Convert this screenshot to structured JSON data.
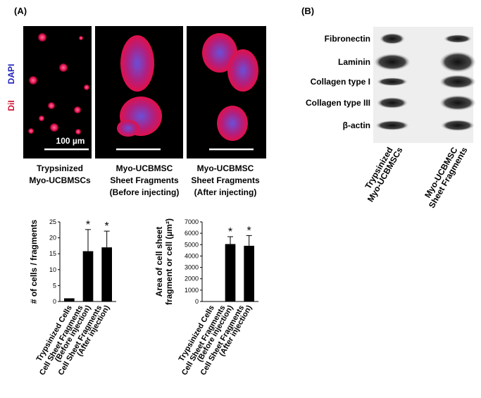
{
  "panel_labels": [
    "(A)",
    "(B)"
  ],
  "micrographs": {
    "stain_labels": [
      "DAPI",
      "DiI"
    ],
    "scale_bar": "100 µm",
    "captions": [
      [
        "Trypsinized",
        "Myo-UCBMSCs"
      ],
      [
        "Myo-UCBMSC",
        "Sheet Fragments",
        "(Before injecting)"
      ],
      [
        "Myo-UCBMSC",
        "Sheet Fragments",
        "(After injecting)"
      ]
    ]
  },
  "blot": {
    "rows": [
      "Fibronectin",
      "Laminin",
      "Collagen type I",
      "Collagen type III",
      "β-actin"
    ],
    "lanes": [
      [
        "Trypsinized",
        "Myo-UCBMSCs"
      ],
      [
        "Myo-UCBMSC",
        "Sheet Fragments"
      ]
    ]
  },
  "chart_data": [
    {
      "type": "bar",
      "y_label": [
        "# of cells / fragments"
      ],
      "categories": [
        [
          "Trypsinized  Cells"
        ],
        [
          "Cell Sheet Fragments",
          "(Before injection)"
        ],
        [
          "Cell Sheet Fragments",
          "(After injection)"
        ]
      ],
      "values": [
        1,
        15.8,
        17
      ],
      "errors": [
        null,
        6.8,
        5.1
      ],
      "significance": [
        null,
        "*",
        "*"
      ],
      "color": "#000000",
      "ylim": [
        0,
        25
      ],
      "yticks": [
        0,
        5,
        10,
        15,
        20,
        25
      ]
    },
    {
      "type": "bar",
      "y_label": [
        "Area of cell sheet",
        "fragment or cell (µm²)"
      ],
      "categories": [
        [
          "Trypsinized  Cells"
        ],
        [
          "Cell Sheet Fragments",
          "(Before injection)"
        ],
        [
          "Cell Sheet Fragments",
          "(After injection)"
        ]
      ],
      "values": [
        30,
        5050,
        4900
      ],
      "errors": [
        null,
        650,
        900
      ],
      "significance": [
        null,
        "*",
        "*"
      ],
      "color": "#000000",
      "ylim": [
        0,
        7000
      ],
      "yticks": [
        0,
        1000,
        2000,
        3000,
        4000,
        5000,
        6000,
        7000
      ]
    }
  ]
}
